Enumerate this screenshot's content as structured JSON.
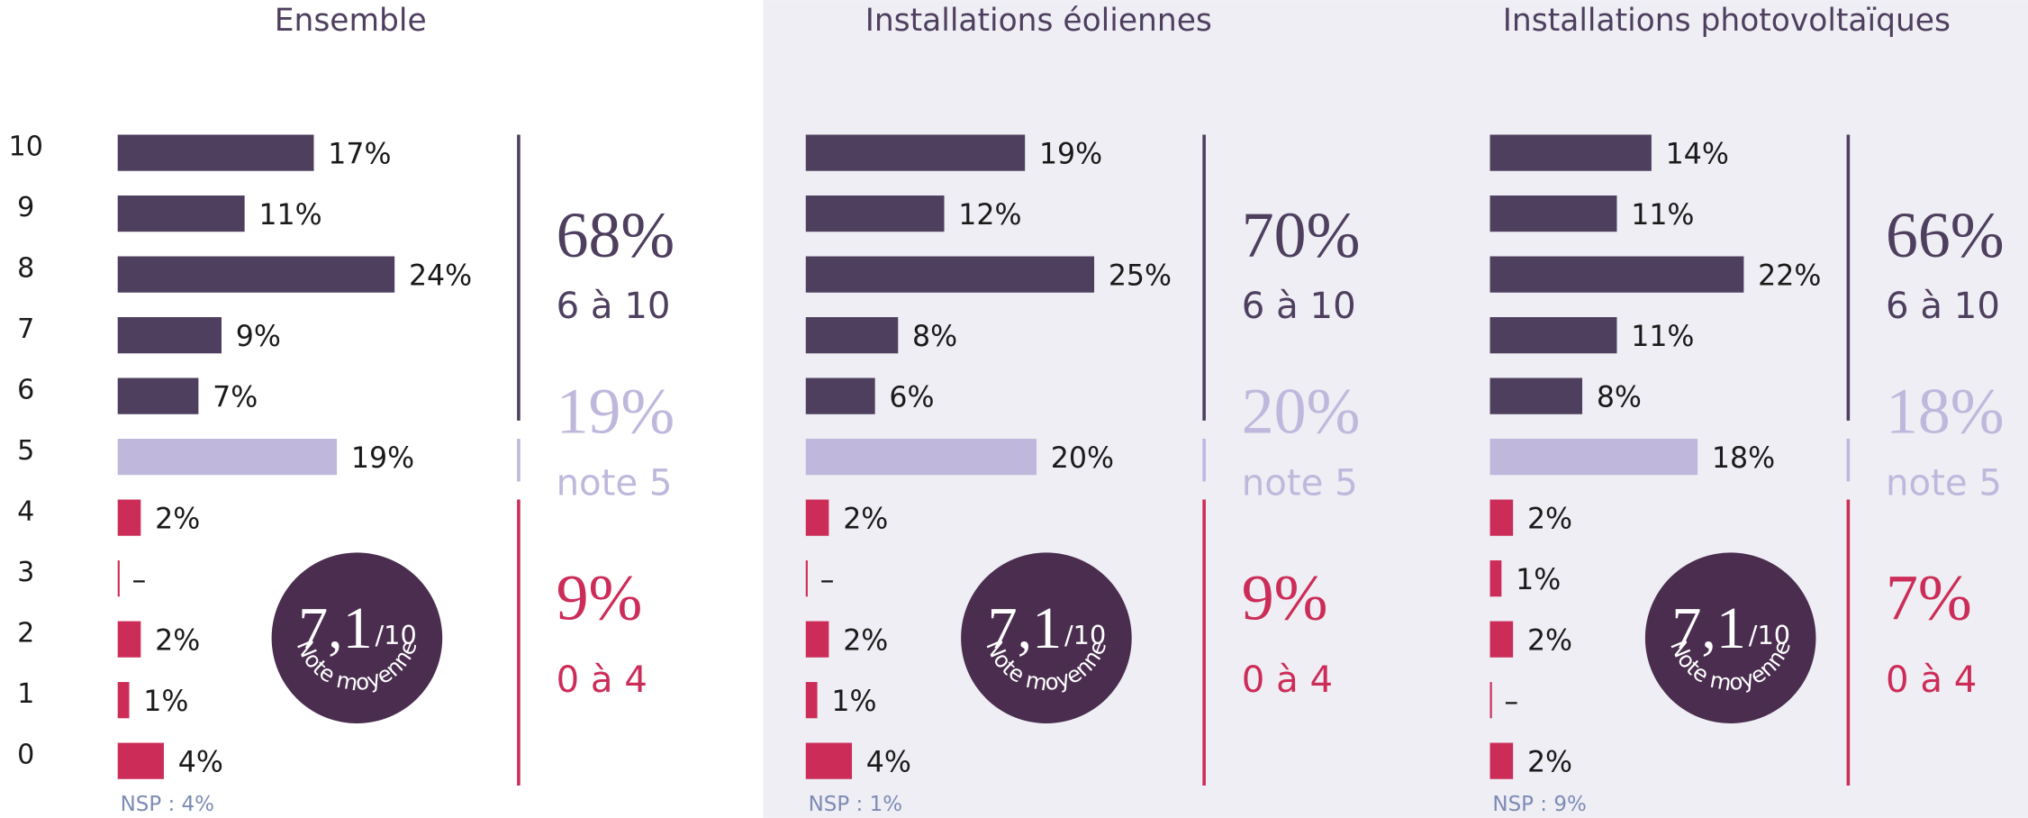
{
  "chart_data": [
    {
      "type": "bar",
      "title": "Ensemble",
      "categories": [
        "10",
        "9",
        "8",
        "7",
        "6",
        "5",
        "4",
        "3",
        "2",
        "1",
        "0"
      ],
      "values": [
        17,
        11,
        24,
        9,
        7,
        19,
        2,
        0,
        2,
        1,
        4
      ],
      "value_labels": [
        "17%",
        "11%",
        "24%",
        "9%",
        "7%",
        "19%",
        "2%",
        "–",
        "2%",
        "1%",
        "4%"
      ],
      "colors": [
        "#4e3f5f",
        "#4e3f5f",
        "#4e3f5f",
        "#4e3f5f",
        "#4e3f5f",
        "#c0b8dc",
        "#cc2d58",
        "#cc2d58",
        "#cc2d58",
        "#cc2d58",
        "#cc2d58"
      ],
      "groups": [
        {
          "total": {
            "value": 68,
            "label": "68%"
          },
          "caption": "6 à 10",
          "color": "#4e3f5f"
        },
        {
          "total": {
            "value": 19,
            "label": "19%"
          },
          "caption": "note 5",
          "color": "#c0b8dc"
        },
        {
          "total": {
            "value": 9,
            "label": "9%"
          },
          "caption": "0 à 4",
          "color": "#cc2d58"
        }
      ],
      "average": {
        "value": 7.1,
        "label": "7,1"
      },
      "average_scale": "/10",
      "average_caption": "Note moyenne",
      "note": "NSP : 4%"
    },
    {
      "type": "bar",
      "title": "Installations éoliennes",
      "values": [
        19,
        12,
        25,
        8,
        6,
        20,
        2,
        0,
        2,
        1,
        4
      ],
      "value_labels": [
        "19%",
        "12%",
        "25%",
        "8%",
        "6%",
        "20%",
        "2%",
        "–",
        "2%",
        "1%",
        "4%"
      ],
      "colors": [
        "#4e3f5f",
        "#4e3f5f",
        "#4e3f5f",
        "#4e3f5f",
        "#4e3f5f",
        "#c0b8dc",
        "#cc2d58",
        "#cc2d58",
        "#cc2d58",
        "#cc2d58",
        "#cc2d58"
      ],
      "groups": [
        {
          "total": {
            "value": 70,
            "label": "70%"
          },
          "caption": "6 à 10",
          "color": "#4e3f5f"
        },
        {
          "total": {
            "value": 20,
            "label": "20%"
          },
          "caption": "note 5",
          "color": "#c0b8dc"
        },
        {
          "total": {
            "value": 9,
            "label": "9%"
          },
          "caption": "0 à 4",
          "color": "#cc2d58"
        }
      ],
      "average": {
        "value": 7.1,
        "label": "7,1"
      },
      "average_scale": "/10",
      "average_caption": "Note moyenne",
      "note": "NSP : 1%"
    },
    {
      "type": "bar",
      "title": "Installations photovoltaïques",
      "values": [
        14,
        11,
        22,
        11,
        8,
        18,
        2,
        1,
        2,
        0,
        2
      ],
      "value_labels": [
        "14%",
        "11%",
        "22%",
        "11%",
        "8%",
        "18%",
        "2%",
        "1%",
        "2%",
        "–",
        "2%"
      ],
      "colors": [
        "#4e3f5f",
        "#4e3f5f",
        "#4e3f5f",
        "#4e3f5f",
        "#4e3f5f",
        "#c0b8dc",
        "#cc2d58",
        "#cc2d58",
        "#cc2d58",
        "#cc2d58",
        "#cc2d58"
      ],
      "groups": [
        {
          "total": {
            "value": 66,
            "label": "66%"
          },
          "caption": "6 à 10",
          "color": "#4e3f5f"
        },
        {
          "total": {
            "value": 18,
            "label": "18%"
          },
          "caption": "note 5",
          "color": "#c0b8dc"
        },
        {
          "total": {
            "value": 7,
            "label": "7%"
          },
          "caption": "0 à 4",
          "color": "#cc2d58"
        }
      ],
      "average": {
        "value": 7.1,
        "label": "7,1"
      },
      "average_scale": "/10",
      "average_caption": "Note moyenne",
      "note": "NSP : 9%"
    }
  ]
}
